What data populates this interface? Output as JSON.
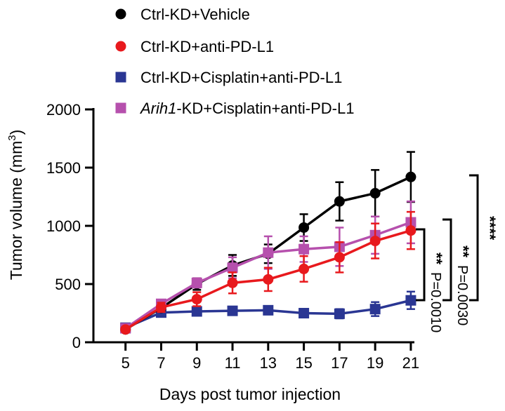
{
  "chart_data": {
    "type": "line",
    "title": "",
    "xlabel": "Days post tumor injection",
    "ylabel_main": "Tumor volume (mm",
    "ylabel_sup": "3",
    "ylabel_close": ")",
    "x": [
      5,
      7,
      9,
      11,
      13,
      15,
      17,
      19,
      21
    ],
    "xlim": [
      3.2,
      21.2
    ],
    "ylim": [
      0,
      2000
    ],
    "yticks": [
      0,
      500,
      1000,
      1500,
      2000
    ],
    "legend_position": "top",
    "series": [
      {
        "name": "Ctrl-KD+Vehicle",
        "name_italic": "",
        "name_rest": "Ctrl-KD+Vehicle",
        "color": "#000000",
        "marker": "circle",
        "values": [
          110,
          295,
          500,
          660,
          760,
          985,
          1210,
          1280,
          1420
        ],
        "errors": [
          20,
          30,
          50,
          90,
          80,
          115,
          165,
          200,
          215
        ]
      },
      {
        "name": "Ctrl-KD+anti-PD-L1",
        "name_italic": "",
        "name_rest": "Ctrl-KD+anti-PD-L1",
        "color": "#e8191d",
        "marker": "circle",
        "values": [
          110,
          300,
          370,
          510,
          540,
          630,
          730,
          870,
          960
        ],
        "errors": [
          20,
          40,
          60,
          90,
          100,
          110,
          130,
          150,
          160
        ]
      },
      {
        "name": "Ctrl-KD+Cisplatin+anti-PD-L1",
        "name_italic": "",
        "name_rest": "Ctrl-KD+Cisplatin+anti-PD-L1",
        "color": "#2a3693",
        "marker": "square",
        "values": [
          125,
          255,
          265,
          270,
          275,
          250,
          245,
          285,
          360
        ],
        "errors": [
          15,
          25,
          30,
          35,
          30,
          35,
          40,
          60,
          75
        ]
      },
      {
        "name": "Arih1-KD+Cisplatin+anti-PD-L1",
        "name_italic": "Arih1",
        "name_rest": "-KD+Cisplatin+anti-PD-L1",
        "color": "#b650ad",
        "marker": "square",
        "values": [
          120,
          330,
          510,
          640,
          770,
          800,
          820,
          920,
          1030
        ],
        "errors": [
          20,
          30,
          40,
          90,
          140,
          110,
          165,
          160,
          180
        ]
      }
    ],
    "annotations": [
      {
        "stars": "**",
        "pvalue": "P=0.0010"
      },
      {
        "stars": "**",
        "pvalue": "P=0.0030"
      },
      {
        "stars": "****",
        "pvalue": ""
      }
    ]
  }
}
